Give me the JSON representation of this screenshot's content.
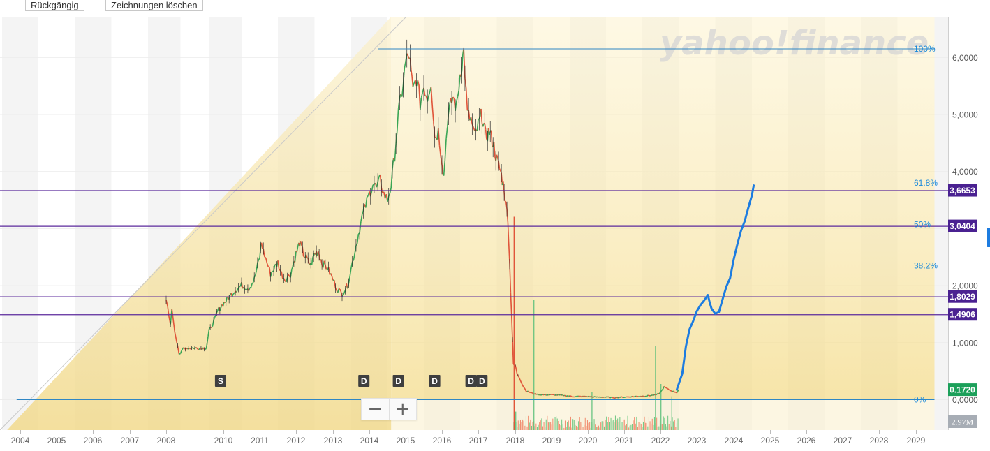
{
  "toolbar": {
    "undo_label": "Rückgängig",
    "clear_label": "Zeichnungen löschen"
  },
  "watermark": {
    "text": "yahoo!finance"
  },
  "zoom": {
    "minus_label": "−",
    "plus_label": "+"
  },
  "colors": {
    "up": "#3aa655",
    "down": "#e0553a",
    "projection": "#1d7ce0",
    "fib_line": "#2f86c4",
    "fib_text": "#1c8adb",
    "level_line": "#5b2a9c",
    "level_label_bg": "#4a2191",
    "price_label_bg": "#1ca05a",
    "volume_label_bg": "#a7adb5"
  },
  "chart_data": {
    "type": "line",
    "title": "",
    "xlabel": "",
    "ylabel": "",
    "xlim": [
      2003.55,
      2029.7
    ],
    "ylim": [
      -0.52,
      6.7
    ],
    "x_ticks": [
      "2004",
      "2005",
      "2006",
      "2007",
      "2008",
      "2010",
      "2011",
      "2012",
      "2013",
      "2014",
      "2015",
      "2016",
      "2017",
      "2018",
      "2019",
      "2020",
      "2021",
      "2022",
      "2023",
      "2024",
      "2025",
      "2026",
      "2027",
      "2028",
      "2029"
    ],
    "y_ticks": [
      "0,0000",
      "1,0000",
      "2,0000",
      "4,0000",
      "5,0000",
      "6,0000"
    ],
    "fibonacci": {
      "start_year": 2014.6,
      "end_year": 2029.5,
      "levels": [
        {
          "label": "100%",
          "value": 6.15
        },
        {
          "label": "61.8%",
          "value": 3.8
        },
        {
          "label": "50%",
          "value": 3.07
        },
        {
          "label": "38.2%",
          "value": 2.35
        },
        {
          "label": "0%",
          "value": 0.0
        }
      ]
    },
    "horizontal_levels": [
      {
        "label": "3,6653",
        "value": 3.6653
      },
      {
        "label": "3,0404",
        "value": 3.0404
      },
      {
        "label": "1,8029",
        "value": 1.8029
      },
      {
        "label": "1,4906",
        "value": 1.4906
      }
    ],
    "price_label": "0.1720",
    "volume_label": "2.97M",
    "dividend_markers": [
      {
        "label": "S",
        "year": 2009.9
      },
      {
        "label": "D",
        "year": 2013.85
      },
      {
        "label": "D",
        "year": 2014.8
      },
      {
        "label": "D",
        "year": 2015.8
      },
      {
        "label": "D",
        "year": 2016.8
      },
      {
        "label": "D",
        "year": 2017.1
      }
    ],
    "series": [
      {
        "name": "Price",
        "x": [
          2008.0,
          2008.05,
          2008.1,
          2008.15,
          2008.2,
          2008.25,
          2008.3,
          2008.4,
          2008.45,
          2008.5,
          2008.55,
          2008.6,
          2008.75,
          2009.0,
          2009.4,
          2009.5,
          2009.7,
          2009.8,
          2009.95,
          2010.1,
          2010.3,
          2010.5,
          2010.7,
          2010.85,
          2011.0,
          2011.05,
          2011.1,
          2011.2,
          2011.3,
          2011.5,
          2011.6,
          2011.7,
          2011.85,
          2012.0,
          2012.1,
          2012.2,
          2012.3,
          2012.4,
          2012.5,
          2012.6,
          2012.7,
          2012.85,
          2013.0,
          2013.1,
          2013.25,
          2013.4,
          2013.5,
          2013.6,
          2013.7,
          2013.8,
          2013.9,
          2014.0,
          2014.1,
          2014.2,
          2014.3,
          2014.4,
          2014.5,
          2014.6,
          2014.7,
          2014.8,
          2014.9,
          2015.0,
          2015.1,
          2015.15,
          2015.2,
          2015.3,
          2015.4,
          2015.5,
          2015.6,
          2015.7,
          2015.8,
          2015.9,
          2016.0,
          2016.05,
          2016.15,
          2016.3,
          2016.4,
          2016.5,
          2016.55,
          2016.6,
          2016.7,
          2016.8,
          2016.9,
          2017.0,
          2017.1,
          2017.2,
          2017.3,
          2017.4,
          2017.5,
          2017.6,
          2017.7,
          2017.75,
          2017.8,
          2017.9,
          2017.95,
          2018.0,
          2018.05,
          2018.1,
          2018.2,
          2018.3,
          2018.5,
          2018.7,
          2019.0,
          2019.3,
          2019.6,
          2020.0,
          2020.2,
          2020.5,
          2020.7,
          2021.0,
          2021.3,
          2021.6,
          2021.9,
          2022.0,
          2022.1,
          2022.2,
          2022.3,
          2022.45,
          2022.5
        ],
        "values": [
          1.75,
          1.6,
          1.45,
          1.35,
          1.55,
          1.4,
          1.2,
          0.95,
          0.8,
          0.78,
          0.85,
          0.9,
          0.9,
          0.9,
          0.9,
          1.2,
          1.4,
          1.55,
          1.65,
          1.75,
          1.9,
          2.0,
          1.95,
          2.1,
          2.5,
          2.75,
          2.6,
          2.4,
          2.2,
          2.4,
          2.2,
          2.1,
          2.2,
          2.55,
          2.75,
          2.55,
          2.45,
          2.35,
          2.55,
          2.6,
          2.4,
          2.3,
          2.1,
          1.95,
          1.85,
          2.0,
          2.3,
          2.6,
          2.9,
          3.2,
          3.4,
          3.6,
          3.8,
          3.7,
          3.85,
          3.6,
          3.5,
          3.75,
          4.3,
          5.0,
          5.4,
          5.9,
          6.05,
          5.7,
          5.4,
          5.65,
          5.2,
          5.5,
          5.3,
          5.6,
          4.6,
          4.7,
          4.2,
          3.9,
          4.9,
          5.3,
          5.1,
          5.7,
          5.9,
          6.1,
          5.0,
          4.9,
          4.6,
          4.8,
          5.0,
          4.6,
          4.7,
          4.5,
          4.2,
          4.0,
          3.7,
          3.4,
          3.2,
          1.5,
          0.6,
          0.6,
          0.45,
          0.4,
          0.25,
          0.15,
          0.1,
          0.08,
          0.08,
          0.07,
          0.05,
          0.05,
          0.04,
          0.04,
          0.03,
          0.04,
          0.05,
          0.06,
          0.08,
          0.12,
          0.22,
          0.18,
          0.15,
          0.12,
          0.17
        ]
      },
      {
        "name": "Projection",
        "x": [
          2022.45,
          2022.6,
          2022.7,
          2022.8,
          2022.9,
          2023.0,
          2023.1,
          2023.2,
          2023.3,
          2023.35,
          2023.4,
          2023.5,
          2023.6,
          2023.7,
          2023.8,
          2023.9,
          2024.0,
          2024.1,
          2024.2,
          2024.3,
          2024.4,
          2024.5,
          2024.55
        ],
        "values": [
          0.17,
          0.45,
          0.9,
          1.2,
          1.4,
          1.55,
          1.65,
          1.75,
          1.85,
          1.7,
          1.58,
          1.5,
          1.55,
          1.75,
          1.95,
          2.15,
          2.45,
          2.7,
          2.95,
          3.15,
          3.35,
          3.6,
          3.75
        ]
      }
    ],
    "volume_spikes": [
      {
        "year": 2018.0,
        "value": 0.12
      },
      {
        "year": 2018.5,
        "value": 0.85
      },
      {
        "year": 2020.1,
        "value": 0.25
      },
      {
        "year": 2021.85,
        "value": 0.55
      },
      {
        "year": 2022.0,
        "value": 0.3
      },
      {
        "year": 2022.3,
        "value": 0.22
      }
    ]
  }
}
